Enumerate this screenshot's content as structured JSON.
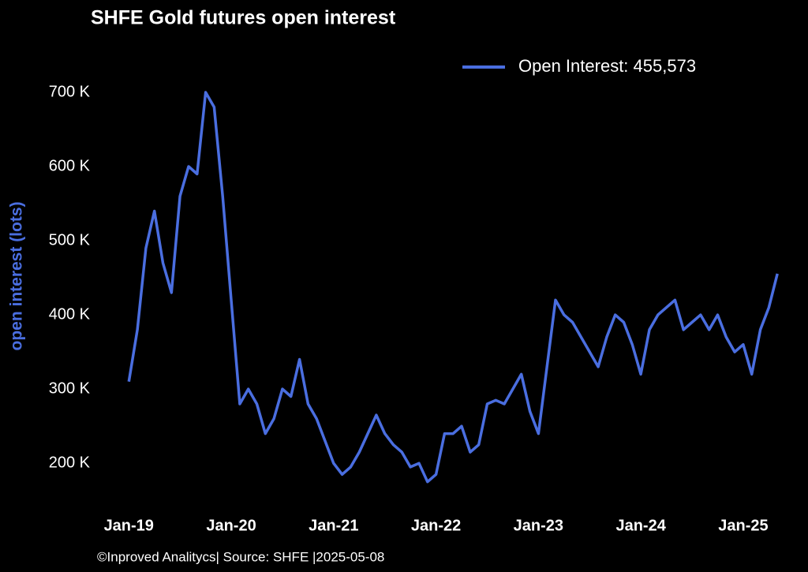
{
  "chart_data": {
    "type": "line",
    "title": "SHFE Gold futures open interest",
    "y_label": "open interest (lots)",
    "source": "©Inproved Analitycs| Source: SHFE |2025-05-08",
    "legend": "upper right",
    "x": [
      "2019-01",
      "2019-02",
      "2019-03",
      "2019-04",
      "2019-05",
      "2019-06",
      "2019-07",
      "2019-08",
      "2019-09",
      "2019-10",
      "2019-11",
      "2019-12",
      "2020-01",
      "2020-02",
      "2020-03",
      "2020-04",
      "2020-05",
      "2020-06",
      "2020-07",
      "2020-08",
      "2020-09",
      "2020-10",
      "2020-11",
      "2020-12",
      "2021-01",
      "2021-02",
      "2021-03",
      "2021-04",
      "2021-05",
      "2021-06",
      "2021-07",
      "2021-08",
      "2021-09",
      "2021-10",
      "2021-11",
      "2021-12",
      "2022-01",
      "2022-02",
      "2022-03",
      "2022-04",
      "2022-05",
      "2022-06",
      "2022-07",
      "2022-08",
      "2022-09",
      "2022-10",
      "2022-11",
      "2022-12",
      "2023-01",
      "2023-02",
      "2023-03",
      "2023-04",
      "2023-05",
      "2023-06",
      "2023-07",
      "2023-08",
      "2023-09",
      "2023-10",
      "2023-11",
      "2023-12",
      "2024-01",
      "2024-02",
      "2024-03",
      "2024-04",
      "2024-05",
      "2024-06",
      "2024-07",
      "2024-08",
      "2024-09",
      "2024-10",
      "2024-11",
      "2024-12",
      "2025-01",
      "2025-02",
      "2025-03",
      "2025-04",
      "2025-05"
    ],
    "series": [
      {
        "name": "Open Interest: 455,573",
        "color": "#4a6ee0",
        "values": [
          310000,
          380000,
          490000,
          540000,
          470000,
          430000,
          560000,
          600000,
          590000,
          700000,
          680000,
          560000,
          420000,
          280000,
          300000,
          280000,
          240000,
          260000,
          300000,
          290000,
          340000,
          280000,
          260000,
          230000,
          200000,
          185000,
          195000,
          215000,
          240000,
          265000,
          240000,
          225000,
          215000,
          195000,
          200000,
          175000,
          185000,
          240000,
          240000,
          250000,
          215000,
          225000,
          280000,
          285000,
          280000,
          300000,
          320000,
          270000,
          240000,
          330000,
          420000,
          400000,
          390000,
          370000,
          350000,
          330000,
          370000,
          400000,
          390000,
          360000,
          320000,
          380000,
          400000,
          410000,
          420000,
          380000,
          390000,
          400000,
          380000,
          400000,
          370000,
          350000,
          360000,
          320000,
          380000,
          410000,
          455573
        ]
      }
    ],
    "xlim": [
      "2018-09",
      "2025-06"
    ],
    "xticks": [
      {
        "value": "2019-01",
        "label": "Jan-19"
      },
      {
        "value": "2020-01",
        "label": "Jan-20"
      },
      {
        "value": "2021-01",
        "label": "Jan-21"
      },
      {
        "value": "2022-01",
        "label": "Jan-22"
      },
      {
        "value": "2023-01",
        "label": "Jan-23"
      },
      {
        "value": "2024-01",
        "label": "Jan-24"
      },
      {
        "value": "2025-01",
        "label": "Jan-25"
      }
    ],
    "ylim": [
      130000,
      750000
    ],
    "yticks": [
      {
        "value": 200000,
        "label": "200 K"
      },
      {
        "value": 300000,
        "label": "300 K"
      },
      {
        "value": 400000,
        "label": "400 K"
      },
      {
        "value": 500000,
        "label": "500 K"
      },
      {
        "value": 600000,
        "label": "600 K"
      },
      {
        "value": 700000,
        "label": "700 K"
      }
    ],
    "grid": false
  }
}
